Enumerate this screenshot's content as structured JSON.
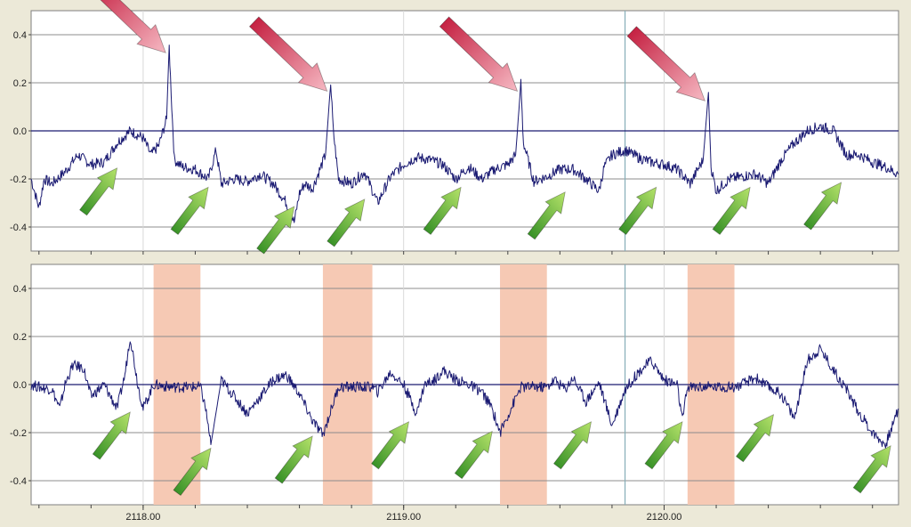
{
  "window": {
    "background": "#ECE9D8"
  },
  "colors": {
    "trace": "#1A1A72",
    "zero_line": "#1A1A72",
    "grid": "#8C8C8C",
    "cursor": "#86AEB8",
    "band": "#F6C9B4",
    "artifact_arrow": "#D8344D",
    "event_arrow": "#4BA932"
  },
  "chart_data": [
    {
      "type": "line",
      "panel": "top",
      "xlim": [
        2117.57,
        2120.9
      ],
      "ylim": [
        -0.5,
        0.5
      ],
      "yticks": [
        0.4,
        0.2,
        0.0,
        -0.2,
        -0.4
      ],
      "ytick_labels": [
        "0.4",
        "0.2",
        "0.0",
        "-0.2",
        "-0.4"
      ],
      "grid": true,
      "cursor_x": 2119.85,
      "series": [
        {
          "x": [
            2117.57,
            2117.6,
            2117.62,
            2117.65,
            2117.7,
            2117.75,
            2117.8,
            2117.85,
            2117.9,
            2117.95,
            2118.0,
            2118.03,
            2118.06,
            2118.09,
            2118.1,
            2118.11,
            2118.12,
            2118.15,
            2118.2,
            2118.25,
            2118.28,
            2118.3,
            2118.35,
            2118.4,
            2118.45,
            2118.5,
            2118.55,
            2118.58,
            2118.6,
            2118.62,
            2118.65,
            2118.7,
            2118.72,
            2118.73,
            2118.75,
            2118.8,
            2118.85,
            2118.9,
            2118.95,
            2119.0,
            2119.05,
            2119.1,
            2119.15,
            2119.2,
            2119.25,
            2119.3,
            2119.35,
            2119.4,
            2119.43,
            2119.45,
            2119.46,
            2119.5,
            2119.55,
            2119.6,
            2119.65,
            2119.7,
            2119.75,
            2119.77,
            2119.8,
            2119.85,
            2119.9,
            2119.95,
            2120.0,
            2120.05,
            2120.1,
            2120.15,
            2120.17,
            2120.18,
            2120.2,
            2120.25,
            2120.3,
            2120.35,
            2120.4,
            2120.45,
            2120.5,
            2120.55,
            2120.6,
            2120.65,
            2120.7,
            2120.75,
            2120.8,
            2120.85,
            2120.9
          ],
          "y": [
            -0.2,
            -0.32,
            -0.2,
            -0.22,
            -0.17,
            -0.1,
            -0.14,
            -0.13,
            -0.05,
            0.0,
            -0.03,
            -0.1,
            -0.06,
            0.05,
            0.35,
            0.1,
            -0.12,
            -0.15,
            -0.16,
            -0.2,
            -0.08,
            -0.22,
            -0.2,
            -0.21,
            -0.18,
            -0.22,
            -0.3,
            -0.38,
            -0.26,
            -0.22,
            -0.24,
            -0.1,
            0.2,
            0.0,
            -0.2,
            -0.22,
            -0.17,
            -0.3,
            -0.19,
            -0.14,
            -0.11,
            -0.12,
            -0.14,
            -0.2,
            -0.15,
            -0.2,
            -0.16,
            -0.14,
            -0.1,
            0.2,
            -0.05,
            -0.21,
            -0.19,
            -0.16,
            -0.16,
            -0.2,
            -0.25,
            -0.15,
            -0.1,
            -0.08,
            -0.11,
            -0.13,
            -0.14,
            -0.16,
            -0.22,
            -0.12,
            0.16,
            -0.15,
            -0.25,
            -0.2,
            -0.19,
            -0.18,
            -0.22,
            -0.12,
            -0.05,
            0.0,
            0.02,
            0.0,
            -0.1,
            -0.1,
            -0.13,
            -0.15,
            -0.18
          ]
        }
      ]
    },
    {
      "type": "line",
      "panel": "bottom",
      "xlim": [
        2117.57,
        2120.9
      ],
      "ylim": [
        -0.5,
        0.5
      ],
      "yticks": [
        0.4,
        0.2,
        0.0,
        -0.2,
        -0.4
      ],
      "ytick_labels": [
        "0.4",
        "0.2",
        "0.0",
        "-0.2",
        "-0.4"
      ],
      "xticks": [
        2118.0,
        2119.0,
        2120.0
      ],
      "xtick_labels": [
        "2118.00",
        "2119.00",
        "2120.00"
      ],
      "grid": true,
      "cursor_x": 2119.85,
      "shaded_bands": [
        [
          2118.04,
          2118.22
        ],
        [
          2118.69,
          2118.88
        ],
        [
          2119.37,
          2119.55
        ],
        [
          2120.09,
          2120.27
        ]
      ],
      "series": [
        {
          "x": [
            2117.57,
            2117.6,
            2117.65,
            2117.68,
            2117.7,
            2117.73,
            2117.77,
            2117.8,
            2117.85,
            2117.9,
            2117.93,
            2117.95,
            2117.98,
            2118.0,
            2118.04,
            2118.1,
            2118.15,
            2118.22,
            2118.24,
            2118.26,
            2118.3,
            2118.35,
            2118.4,
            2118.45,
            2118.5,
            2118.55,
            2118.6,
            2118.65,
            2118.69,
            2118.75,
            2118.8,
            2118.88,
            2118.9,
            2118.95,
            2119.0,
            2119.05,
            2119.08,
            2119.12,
            2119.15,
            2119.2,
            2119.25,
            2119.3,
            2119.34,
            2119.37,
            2119.45,
            2119.55,
            2119.58,
            2119.62,
            2119.65,
            2119.7,
            2119.75,
            2119.8,
            2119.85,
            2119.9,
            2119.95,
            2120.0,
            2120.05,
            2120.07,
            2120.09,
            2120.18,
            2120.27,
            2120.3,
            2120.35,
            2120.4,
            2120.45,
            2120.5,
            2120.55,
            2120.6,
            2120.65,
            2120.7,
            2120.75,
            2120.8,
            2120.85,
            2120.9
          ],
          "y": [
            0.0,
            -0.01,
            -0.02,
            -0.1,
            0.0,
            0.08,
            0.07,
            -0.05,
            0.0,
            -0.1,
            0.04,
            0.2,
            0.0,
            -0.1,
            0.0,
            -0.01,
            -0.01,
            -0.01,
            -0.1,
            -0.25,
            0.02,
            -0.05,
            -0.12,
            -0.05,
            0.02,
            0.04,
            -0.04,
            -0.15,
            -0.21,
            -0.01,
            -0.01,
            -0.01,
            -0.03,
            0.05,
            0.0,
            -0.12,
            0.0,
            0.02,
            0.06,
            0.02,
            0.0,
            -0.03,
            -0.1,
            -0.2,
            -0.01,
            -0.01,
            0.02,
            -0.02,
            0.03,
            -0.07,
            0.01,
            -0.17,
            -0.02,
            0.05,
            0.1,
            0.02,
            0.0,
            -0.15,
            -0.01,
            -0.01,
            -0.01,
            0.0,
            0.03,
            -0.01,
            -0.04,
            -0.14,
            0.1,
            0.15,
            0.06,
            -0.02,
            -0.12,
            -0.2,
            -0.25,
            -0.1
          ]
        }
      ]
    }
  ]
}
